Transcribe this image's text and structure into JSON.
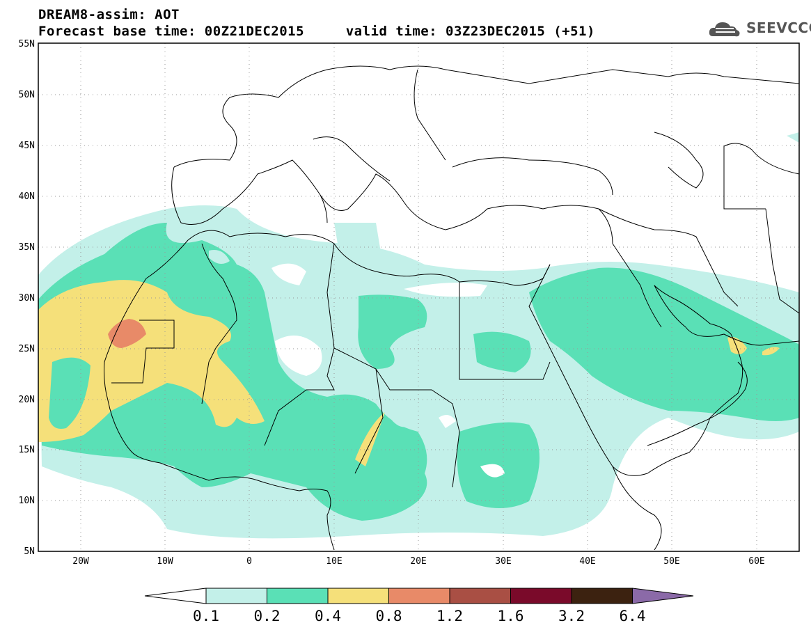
{
  "title": {
    "line1": "DREAM8-assim: AOT",
    "line2": "Forecast base time: 00Z21DEC2015     valid time: 03Z23DEC2015 (+51)"
  },
  "logo": {
    "text": "SEEVCCC",
    "icon": "cloud-logo-icon"
  },
  "map": {
    "lat_range": [
      5,
      55
    ],
    "lon_range": [
      -25,
      65
    ],
    "lat_ticks": [
      "55N",
      "50N",
      "45N",
      "40N",
      "35N",
      "30N",
      "25N",
      "20N",
      "15N",
      "10N",
      "5N"
    ],
    "lon_ticks": [
      "20W",
      "10W",
      "0",
      "10E",
      "20E",
      "30E",
      "40E",
      "50E",
      "60E"
    ],
    "gridlines": "dotted"
  },
  "colorbar": {
    "labels": [
      "0.1",
      "0.2",
      "0.4",
      "0.8",
      "1.2",
      "1.6",
      "3.2",
      "6.4"
    ],
    "colors": [
      "#ffffff",
      "#c3f0e9",
      "#5ae0b6",
      "#f5e07a",
      "#e88a68",
      "#a94f44",
      "#7a0a2a",
      "#3c2210",
      "#8b6aa8"
    ]
  }
}
